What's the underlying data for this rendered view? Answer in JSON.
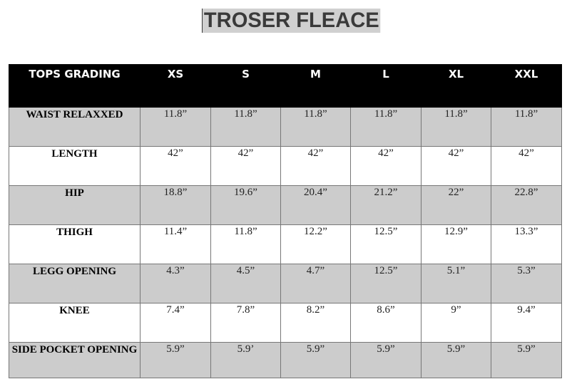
{
  "title": "TROSER FLEACE",
  "table": {
    "headers": [
      "TOPS GRADING",
      "XS",
      "S",
      "M",
      "L",
      "XL",
      "XXL"
    ],
    "rows": [
      {
        "label": "WAIST RELAXXED",
        "values": [
          "11.8”",
          "11.8”",
          "11.8”",
          "11.8”",
          "11.8”",
          "11.8”"
        ]
      },
      {
        "label": "LENGTH",
        "values": [
          "42”",
          "42”",
          "42”",
          "42”",
          "42”",
          "42”"
        ]
      },
      {
        "label": "HIP",
        "values": [
          "18.8”",
          "19.6”",
          "20.4”",
          "21.2”",
          "22”",
          "22.8”"
        ]
      },
      {
        "label": "THIGH",
        "values": [
          "11.4”",
          "11.8”",
          "12.2”",
          "12.5”",
          "12.9”",
          "13.3”"
        ]
      },
      {
        "label": "LEGG OPENING",
        "values": [
          "4.3”",
          "4.5”",
          "4.7”",
          "12.5”",
          "5.1”",
          "5.3”"
        ]
      },
      {
        "label": "KNEE",
        "values": [
          "7.4”",
          "7.8”",
          "8.2”",
          "8.6”",
          "9”",
          "9.4”"
        ]
      },
      {
        "label": "SIDE POCKET OPENING",
        "values": [
          "5.9”",
          "5.9’",
          "5.9”",
          "5.9”",
          "5.9”",
          "5.9”"
        ]
      }
    ]
  },
  "colors": {
    "header_bg": "#000000",
    "header_text": "#ffffff",
    "shaded_row": "#cccccc",
    "title_bg": "#d0d0d0"
  }
}
